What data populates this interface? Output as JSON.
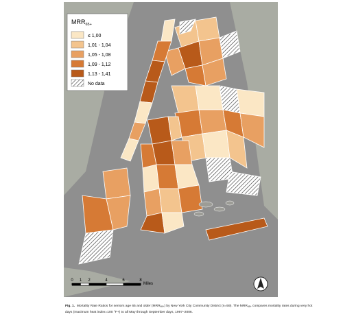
{
  "legend": {
    "title": "MRR",
    "title_sub": "65+",
    "items": [
      {
        "label": "≤ 1,00",
        "color": "#fbe7c5"
      },
      {
        "label": "1,01 - 1,04",
        "color": "#f3c48e"
      },
      {
        "label": "1,05 - 1,08",
        "color": "#e8a062"
      },
      {
        "label": "1,09 - 1,12",
        "color": "#d67a35"
      },
      {
        "label": "1,13 - 1,41",
        "color": "#b85a1a"
      },
      {
        "label": "No data"
      }
    ]
  },
  "scale": {
    "ticks": [
      0,
      1,
      2,
      4,
      6,
      8
    ],
    "unit": "Miles"
  },
  "caption": {
    "lines": [
      [
        {
          "text": "Fig. 1.",
          "bold": true
        },
        {
          "text": "  Mortality Rate Ratios for seniors age 65 and older (MRR"
        },
        {
          "text": "65+",
          "sub": true
        },
        {
          "text": ") by New York City Community District (n=59). The MRR"
        },
        {
          "text": "65+",
          "sub": true
        },
        {
          "text": " compares mortality rates during very hot"
        }
      ],
      [
        {
          "text": "days (maximum heat index=100 °F+) to all May through September days, 1997–2006."
        }
      ]
    ]
  }
}
